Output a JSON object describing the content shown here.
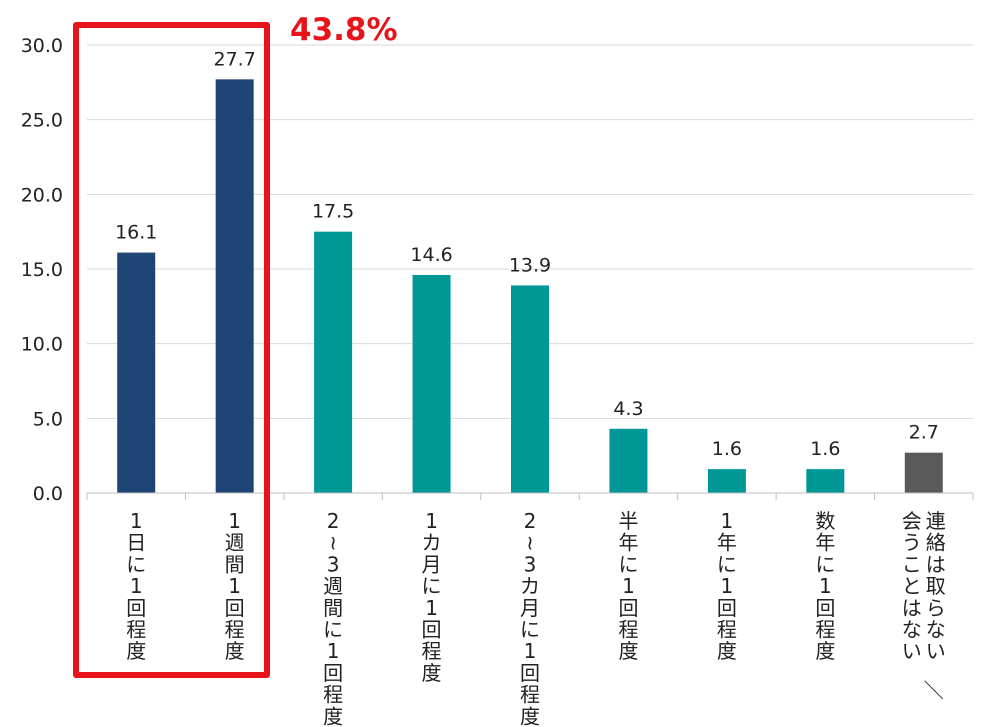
{
  "callout": {
    "text": "43.8%",
    "color": "#e8141b"
  },
  "chart_data": {
    "type": "bar",
    "categories": [
      "1日に1回程度",
      "1週間1回程度",
      "2~3週間に1回程度",
      "1カ月に1回程度",
      "2~3カ月に1回程度",
      "半年に1回程度",
      "1年に1回程度",
      "数年に1回程度",
      "連絡は取らない/会うことはない"
    ],
    "category_lines": [
      [
        "1日に1回程度"
      ],
      [
        "1週間1回程度"
      ],
      [
        "2~3週間に1回程度"
      ],
      [
        "1カ月に1回程度"
      ],
      [
        "2~3カ月に1回程度"
      ],
      [
        "半年に1回程度"
      ],
      [
        "1年に1回程度"
      ],
      [
        "数年に1回程度"
      ],
      [
        "連絡は取らない/",
        "会うことはない"
      ]
    ],
    "values": [
      16.1,
      27.7,
      17.5,
      14.6,
      13.9,
      4.3,
      1.6,
      1.6,
      2.7
    ],
    "value_labels": [
      "16.1",
      "27.7",
      "17.5",
      "14.6",
      "13.9",
      "4.3",
      "1.6",
      "1.6",
      "2.7"
    ],
    "colors": [
      "#1f4576",
      "#1f4576",
      "#009797",
      "#009797",
      "#009797",
      "#009797",
      "#009797",
      "#009797",
      "#595959"
    ],
    "yticks": [
      "0.0",
      "5.0",
      "10.0",
      "15.0",
      "20.0",
      "25.0",
      "30.0"
    ],
    "ylim": [
      0,
      30
    ],
    "grid": true,
    "highlight_categories": [
      0,
      1
    ],
    "highlight_color": "#e8141b"
  }
}
